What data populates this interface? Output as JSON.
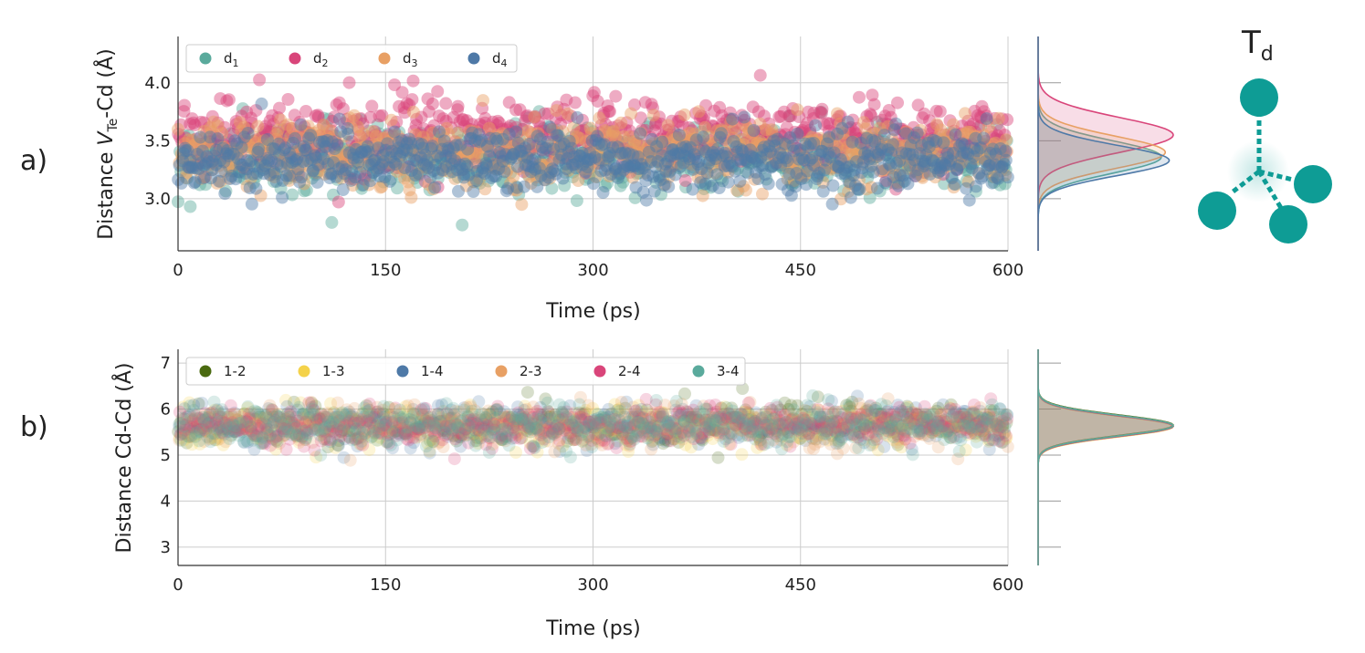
{
  "panel_labels": [
    "a)",
    "b)"
  ],
  "inset": {
    "title_main": "T",
    "title_sub": "d",
    "colors": {
      "atom": "#0e9c95",
      "bond": "#0e9c95",
      "vacancy": "#bfe5e3"
    }
  },
  "chart_data": [
    {
      "type": "scatter",
      "title": "",
      "xlabel": "Time (ps)",
      "ylabel_parts": [
        "Distance ",
        "V",
        "Te",
        "-Cd (Å)"
      ],
      "xlim": [
        0,
        600
      ],
      "ylim": [
        2.55,
        4.4
      ],
      "xticks": [
        "0",
        "150",
        "300",
        "450",
        "600"
      ],
      "xtick_values": [
        0,
        150,
        300,
        450,
        600
      ],
      "yticks": [
        "3.0",
        "3.5",
        "4.0"
      ],
      "ytick_values": [
        3.0,
        3.5,
        4.0
      ],
      "legend_position": "top-left",
      "series": [
        {
          "name": "d",
          "sub": "1",
          "color": "#5aaa9c",
          "mean": 3.36,
          "sd": 0.14,
          "peak_density": 3.1
        },
        {
          "name": "d",
          "sub": "2",
          "color": "#d9457a",
          "mean": 3.55,
          "sd": 0.15,
          "peak_density": 3.4
        },
        {
          "name": "d",
          "sub": "3",
          "color": "#e8a064",
          "mean": 3.4,
          "sd": 0.14,
          "peak_density": 3.2
        },
        {
          "name": "d",
          "sub": "4",
          "color": "#4e79a7",
          "mean": 3.33,
          "sd": 0.13,
          "peak_density": 3.3
        }
      ]
    },
    {
      "type": "scatter",
      "title": "",
      "xlabel": "Time (ps)",
      "ylabel": "Distance Cd-Cd (Å)",
      "xlim": [
        0,
        600
      ],
      "ylim": [
        2.6,
        7.3
      ],
      "xticks": [
        "0",
        "150",
        "300",
        "450",
        "600"
      ],
      "xtick_values": [
        0,
        150,
        300,
        450,
        600
      ],
      "yticks": [
        "3",
        "4",
        "5",
        "6",
        "7"
      ],
      "ytick_values": [
        3,
        4,
        5,
        6,
        7
      ],
      "legend_position": "top-left",
      "series": [
        {
          "name": "1-2",
          "color": "#4a6a10",
          "mean": 5.65,
          "sd": 0.22,
          "peak_density": 1.8
        },
        {
          "name": "1-3",
          "color": "#f4d24a",
          "mean": 5.62,
          "sd": 0.22,
          "peak_density": 1.8
        },
        {
          "name": "1-4",
          "color": "#4e79a7",
          "mean": 5.63,
          "sd": 0.22,
          "peak_density": 1.8
        },
        {
          "name": "2-3",
          "color": "#e8a064",
          "mean": 5.64,
          "sd": 0.22,
          "peak_density": 1.8
        },
        {
          "name": "2-4",
          "color": "#d9457a",
          "mean": 5.63,
          "sd": 0.22,
          "peak_density": 1.8
        },
        {
          "name": "3-4",
          "color": "#5aaa9c",
          "mean": 5.64,
          "sd": 0.22,
          "peak_density": 1.8
        }
      ]
    }
  ]
}
